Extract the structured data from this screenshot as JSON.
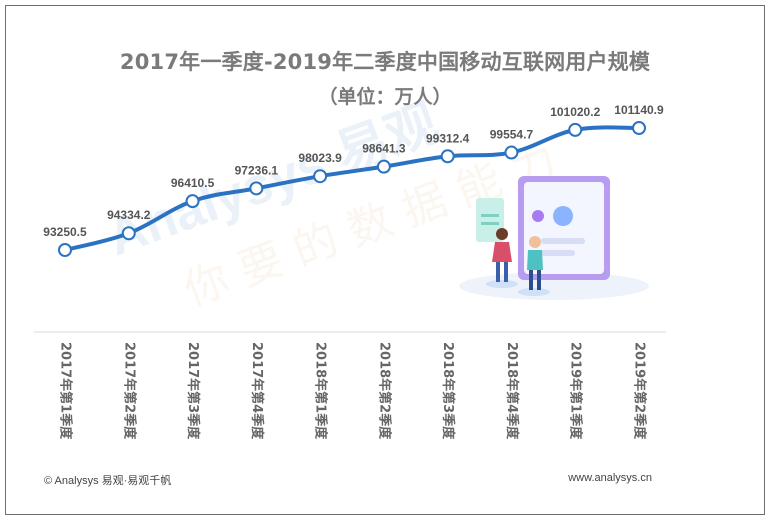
{
  "chart_data": {
    "type": "line",
    "title": "2017年一季度-2019年二季度中国移动互联网用户规模",
    "subtitle": "（单位：万人）",
    "categories": [
      "2017年第1季度",
      "2017年第2季度",
      "2017年第3季度",
      "2017年第4季度",
      "2018年第1季度",
      "2018年第2季度",
      "2018年第3季度",
      "2018年第4季度",
      "2019年第1季度",
      "2019年第2季度"
    ],
    "values": [
      93250.5,
      94334.2,
      96410.5,
      97236.1,
      98023.9,
      98641.3,
      99312.4,
      99554.7,
      101020.2,
      101140.9
    ],
    "data_labels": [
      "93250.5",
      "94334.2",
      "96410.5",
      "97236.1",
      "98023.9",
      "98641.3",
      "99312.4",
      "99554.7",
      "101020.2",
      "101140.9"
    ],
    "ylim": [
      87000,
      102000
    ],
    "grid": false,
    "legend": "none",
    "line_color": "#2b73c2",
    "marker_fill": "#ffffff"
  },
  "watermark": {
    "brand_text": "Analysys 易观",
    "slogan_text": "你要的数据能力"
  },
  "footer": {
    "left": "© Analysys 易观·易观千帆",
    "right": "www.analysys.cn"
  }
}
